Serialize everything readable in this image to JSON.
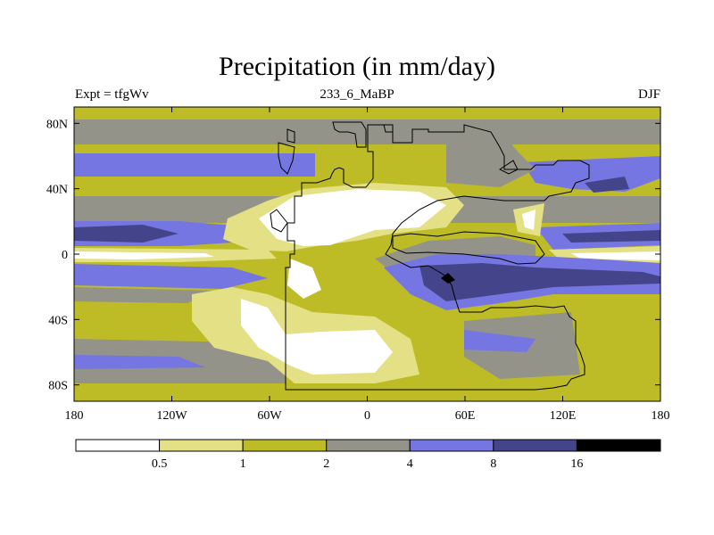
{
  "title": "Precipitation (in mm/day)",
  "subtitle_left": "Expt = tfgWv",
  "subtitle_center": "233_6_MaBP",
  "subtitle_right": "DJF",
  "palette": {
    "p0": "#ffffff",
    "p1": "#e3e085",
    "p2": "#bdbc27",
    "p3": "#939389",
    "p4": "#7676e2",
    "p5": "#44448a",
    "p6": "#000000"
  },
  "colorbar": {
    "levels": [
      "0.5",
      "1",
      "2",
      "4",
      "8",
      "16"
    ],
    "colors": [
      "#ffffff",
      "#e3e085",
      "#bdbc27",
      "#939389",
      "#7676e2",
      "#44448a",
      "#000000"
    ]
  },
  "chart_data": {
    "type": "contour-map",
    "title": "Precipitation (in mm/day)",
    "variable": "precipitation",
    "units": "mm/day",
    "season": "DJF",
    "experiment": "tfgWv",
    "period": "233_6_MaBP",
    "xlim": [
      -180,
      180
    ],
    "ylim": [
      -90,
      90
    ],
    "x_ticks": [
      {
        "value": -180,
        "label": "180"
      },
      {
        "value": -120,
        "label": "120W"
      },
      {
        "value": -60,
        "label": "60W"
      },
      {
        "value": 0,
        "label": "0"
      },
      {
        "value": 60,
        "label": "60E"
      },
      {
        "value": 120,
        "label": "120E"
      },
      {
        "value": 180,
        "label": "180"
      }
    ],
    "y_ticks": [
      {
        "value": 80,
        "label": "80N"
      },
      {
        "value": 40,
        "label": "40N"
      },
      {
        "value": 0,
        "label": "0"
      },
      {
        "value": -40,
        "label": "40S"
      },
      {
        "value": -80,
        "label": "80S"
      }
    ],
    "contour_levels": [
      0.5,
      1,
      2,
      4,
      8,
      16
    ]
  }
}
